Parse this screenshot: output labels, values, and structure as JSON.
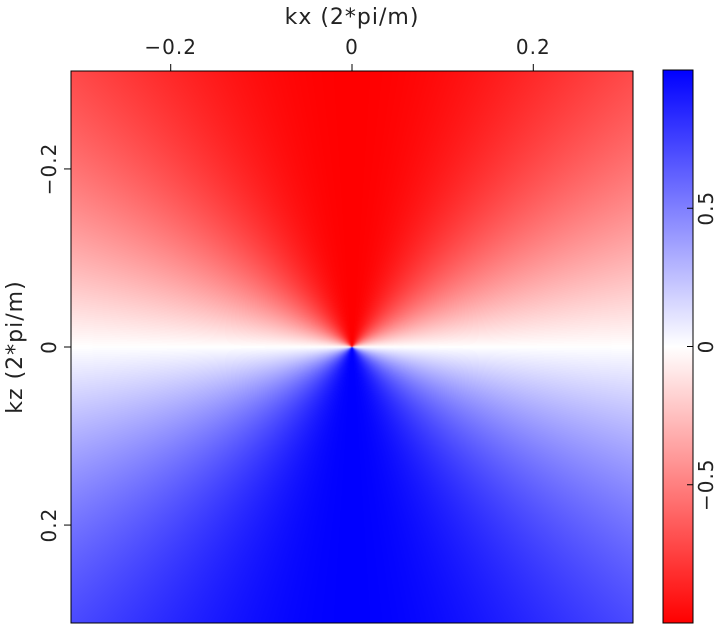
{
  "chart_data": {
    "type": "heatmap",
    "title": "",
    "xlabel": "kx (2*pi/m)",
    "ylabel": "kz (2*pi/m)",
    "xlim": [
      -0.31,
      0.31
    ],
    "ylim": [
      -0.31,
      0.31
    ],
    "y_inverted": true,
    "x_axis_position": "top",
    "x_ticks": [
      {
        "value": -0.2,
        "label": "−0.2"
      },
      {
        "value": 0,
        "label": "0"
      },
      {
        "value": 0.2,
        "label": "0.2"
      }
    ],
    "y_ticks": [
      {
        "value": -0.2,
        "label": "−0.2"
      },
      {
        "value": 0,
        "label": "0"
      },
      {
        "value": 0.2,
        "label": "0.2"
      }
    ],
    "field": "kz / sqrt(kx^2 + kz^2)",
    "colorbar": {
      "range": [
        -1,
        1
      ],
      "colors": {
        "min": "#ff0000",
        "mid": "#ffffff",
        "max": "#0000ff"
      },
      "ticks": [
        {
          "value": 0.5,
          "label": "0.5"
        },
        {
          "value": 0,
          "label": "0"
        },
        {
          "value": -0.5,
          "label": "−0.5"
        }
      ]
    }
  }
}
